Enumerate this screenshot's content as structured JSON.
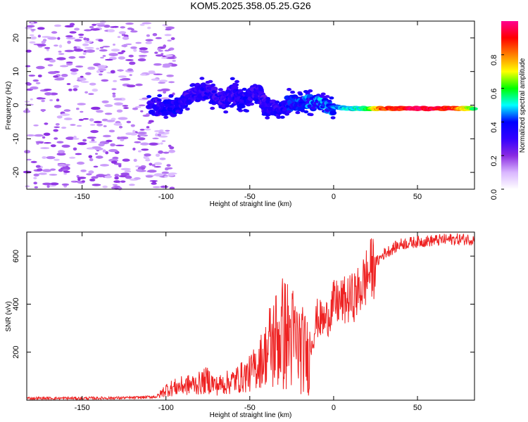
{
  "figure_title": "KOM5.2025.358.05.25.G26",
  "chart_data": [
    {
      "type": "heatmap",
      "name": "spectrogram",
      "title": "KOM5.2025.358.05.25.G26",
      "xlabel": "Height of straight line (km)",
      "ylabel": "Frequency (Hz)",
      "xlim": [
        -183,
        84
      ],
      "ylim": [
        -25,
        25
      ],
      "xticks": [
        -150,
        -100,
        -50,
        0,
        50
      ],
      "xtick_labels": [
        "-150",
        "-100",
        "-50",
        "0",
        "50"
      ],
      "yticks": [
        20,
        10,
        0,
        -10,
        -20
      ],
      "ytick_labels": [
        "20",
        "10",
        "0",
        "-10",
        "-20"
      ],
      "colorbar": {
        "label": "Normalized spectral amplitude",
        "range": [
          0,
          1
        ],
        "ticks": [
          0.0,
          0.2,
          0.4,
          0.6,
          0.8
        ],
        "tick_labels": [
          "0.0",
          "0.2",
          "0.4",
          "0.6",
          "0.8"
        ],
        "colors": [
          "#ffffff",
          "#d9b6ff",
          "#8a2be2",
          "#3300ff",
          "#0000ff",
          "#00ffff",
          "#00ff00",
          "#ffff00",
          "#ff8000",
          "#ff0000",
          "#ff0090"
        ]
      },
      "ridge": [
        {
          "x": -110,
          "y": 0,
          "a": 0.3
        },
        {
          "x": -95,
          "y": -1,
          "a": 0.35
        },
        {
          "x": -85,
          "y": 3,
          "a": 0.3
        },
        {
          "x": -75,
          "y": 4,
          "a": 0.3
        },
        {
          "x": -65,
          "y": 1,
          "a": 0.3
        },
        {
          "x": -60,
          "y": 4,
          "a": 0.3
        },
        {
          "x": -55,
          "y": 1,
          "a": 0.35
        },
        {
          "x": -45,
          "y": 4,
          "a": 0.3
        },
        {
          "x": -40,
          "y": -1,
          "a": 0.3
        },
        {
          "x": -30,
          "y": 0,
          "a": 0.35
        },
        {
          "x": -20,
          "y": 1,
          "a": 0.4
        },
        {
          "x": -10,
          "y": 0.5,
          "a": 0.45
        },
        {
          "x": 0,
          "y": -0.5,
          "a": 0.45
        },
        {
          "x": 10,
          "y": -1,
          "a": 0.5
        },
        {
          "x": 20,
          "y": -1,
          "a": 0.55
        },
        {
          "x": 30,
          "y": -1,
          "a": 0.85
        },
        {
          "x": 50,
          "y": -1,
          "a": 0.95
        },
        {
          "x": 70,
          "y": -1,
          "a": 0.9
        },
        {
          "x": 84,
          "y": -1,
          "a": 0.6
        }
      ]
    },
    {
      "type": "line",
      "name": "snr",
      "title": "",
      "xlabel": "Height of straight line (km)",
      "ylabel": "SNR (v/v)",
      "xlim": [
        -183,
        84
      ],
      "ylim": [
        0,
        700
      ],
      "xticks": [
        -150,
        -100,
        -50,
        0,
        50
      ],
      "xtick_labels": [
        "-150",
        "-100",
        "-50",
        "0",
        "50"
      ],
      "yticks": [
        200,
        400,
        600
      ],
      "ytick_labels": [
        "200",
        "400",
        "600"
      ],
      "color": "#ee2222",
      "series": [
        {
          "name": "SNR",
          "x": [
            -183,
            -150,
            -120,
            -105,
            -100,
            -90,
            -80,
            -75,
            -70,
            -60,
            -50,
            -45,
            -40,
            -35,
            -30,
            -25,
            -20,
            -15,
            -10,
            -5,
            0,
            5,
            10,
            15,
            20,
            25,
            30,
            40,
            50,
            60,
            70,
            84
          ],
          "values": [
            8,
            8,
            10,
            15,
            45,
            60,
            70,
            85,
            60,
            80,
            110,
            150,
            200,
            250,
            280,
            260,
            220,
            180,
            340,
            330,
            400,
            410,
            420,
            450,
            520,
            570,
            610,
            650,
            660,
            665,
            670,
            670
          ]
        }
      ]
    }
  ]
}
